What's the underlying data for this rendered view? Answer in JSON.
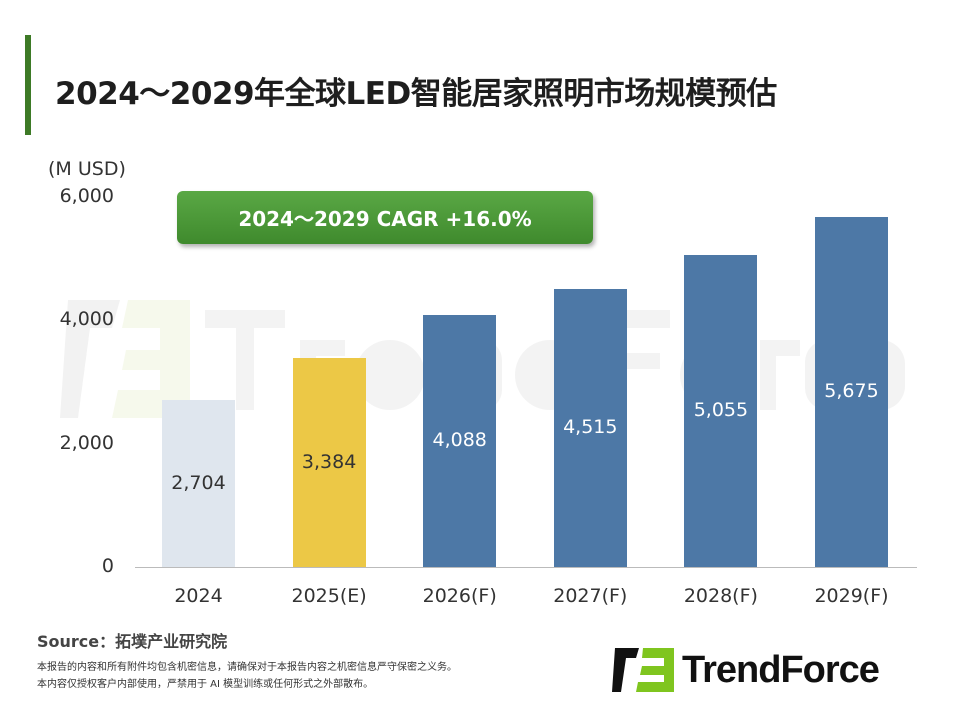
{
  "title": "2024～2029年全球LED智能居家照明市场规模预估",
  "watermark": "TrendForce",
  "cagr_label": "2024～2029 CAGR +16.0%",
  "source": "Source：拓墣产业研究院",
  "notes": [
    "本报告的内容和所有附件均包含机密信息，请确保对于本报告内容之机密信息严守保密之义务。",
    "本内容仅授权客户内部使用，严禁用于 AI 模型训练或任何形式之外部散布。"
  ],
  "logo_text": "TrendForce",
  "colors": {
    "accent": "#3d7a26",
    "actual": "#dfe6ee",
    "estimate": "#ecc846",
    "forecast": "#4d78a6",
    "cagr": "#4a9a38",
    "logo_green": "#7fc51f"
  },
  "chart_data": {
    "type": "bar",
    "title": "2024～2029年全球LED智能居家照明市场规模预估",
    "ylabel": "(M USD)",
    "ylim": [
      0,
      6000
    ],
    "yticks": [
      "0",
      "2,000",
      "4,000",
      "6,000"
    ],
    "grid": false,
    "categories": [
      "2024",
      "2025(E)",
      "2026(F)",
      "2027(F)",
      "2028(F)",
      "2029(F)"
    ],
    "values": [
      2704,
      3384,
      4088,
      4515,
      5055,
      5675
    ],
    "value_labels": [
      "2,704",
      "3,384",
      "4,088",
      "4,515",
      "5,055",
      "5,675"
    ],
    "bar_colors": [
      "#dfe6ee",
      "#ecc846",
      "#4d78a6",
      "#4d78a6",
      "#4d78a6",
      "#4d78a6"
    ],
    "label_colors": [
      "#333333",
      "#333333",
      "#ffffff",
      "#ffffff",
      "#ffffff",
      "#ffffff"
    ]
  }
}
